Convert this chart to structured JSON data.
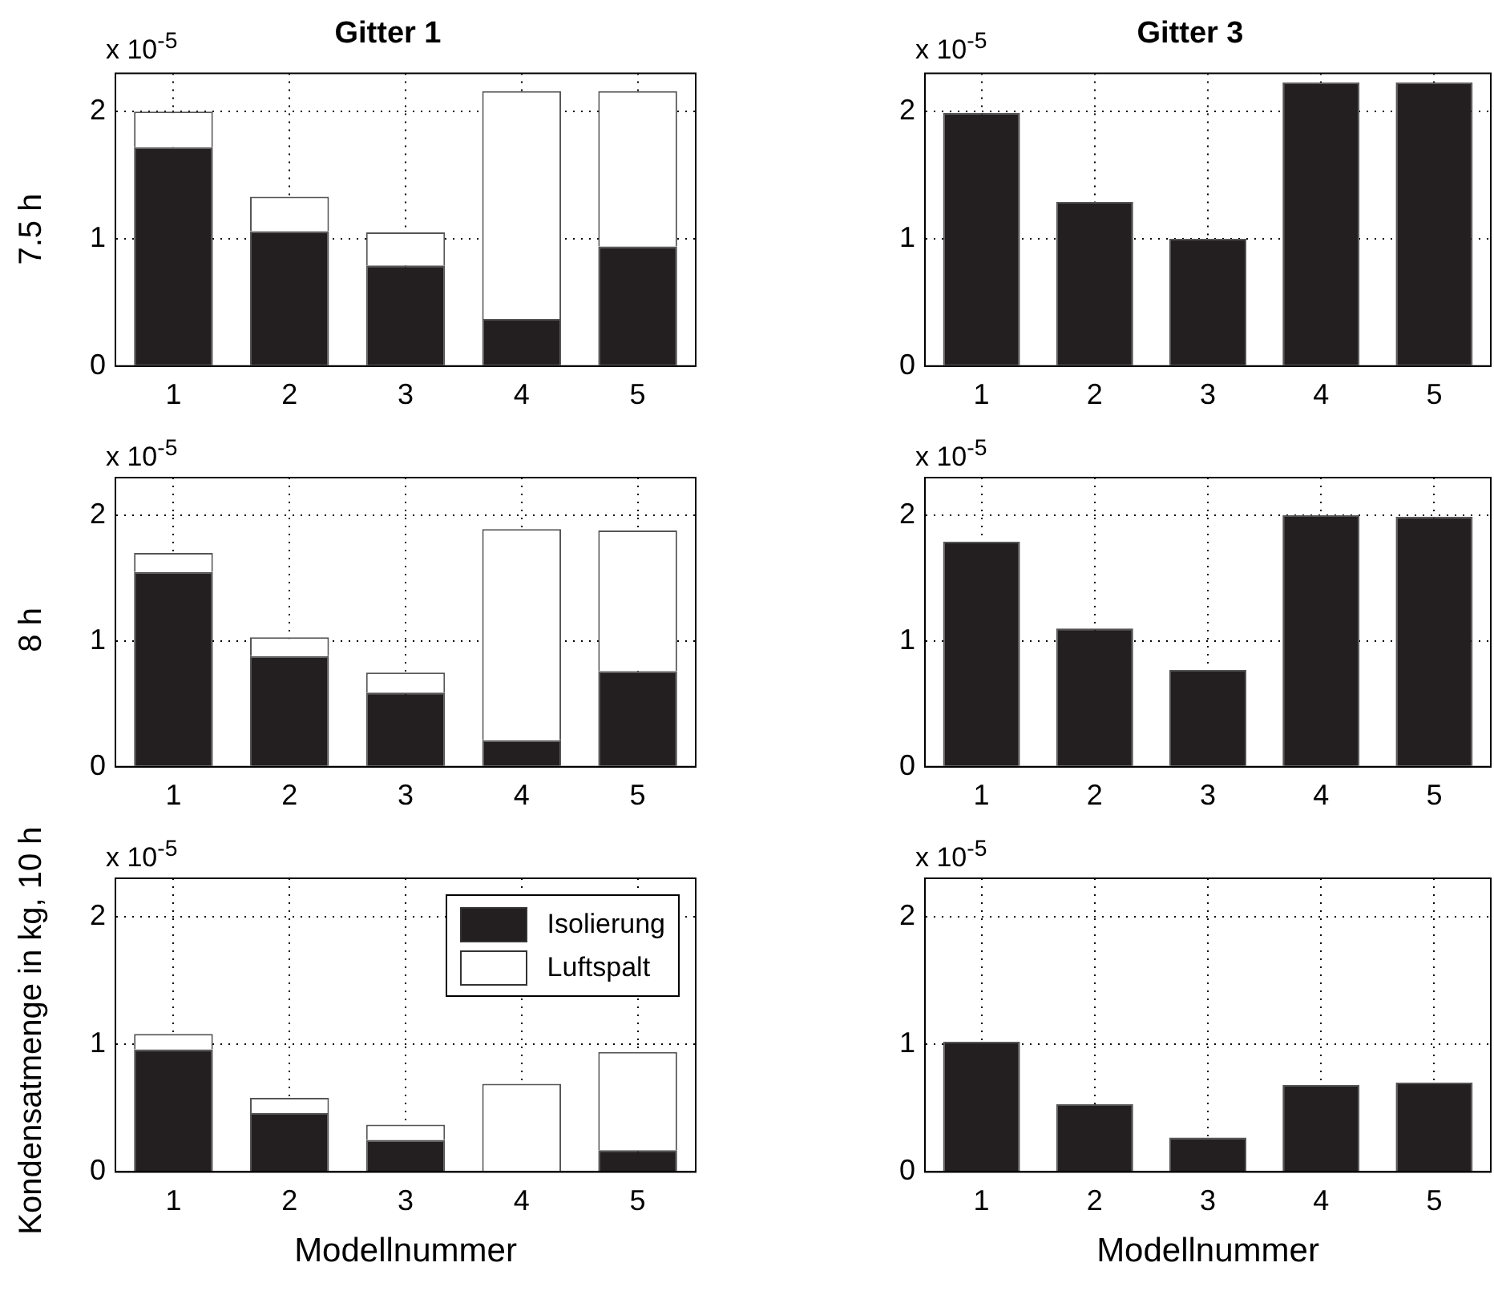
{
  "chart_data": [
    {
      "type": "bar",
      "title": "Gitter 1",
      "ylabel": "7.5 h",
      "categories": [
        "1",
        "2",
        "3",
        "4",
        "5"
      ],
      "stacked": true,
      "ylim": [
        0,
        2.3
      ],
      "yticks": [
        0,
        1,
        2
      ],
      "grid": true,
      "annotations": [
        "x 10$^{-5}$"
      ],
      "series": [
        {
          "color": "#231f20",
          "values": [
            1.72,
            1.06,
            0.79,
            0.37,
            0.94
          ]
        },
        {
          "color": "#ffffff",
          "values": [
            0.28,
            0.27,
            0.26,
            1.79,
            1.22
          ]
        }
      ]
    },
    {
      "type": "bar",
      "title": "Gitter 3",
      "categories": [
        "1",
        "2",
        "3",
        "4",
        "5"
      ],
      "ylim": [
        0,
        2.3
      ],
      "yticks": [
        0,
        1,
        2
      ],
      "grid": true,
      "annotations": [
        "x 10$^{-5}$"
      ],
      "series": [
        {
          "color": "#231f20",
          "values": [
            1.99,
            1.29,
            1.0,
            2.23,
            2.23
          ]
        }
      ]
    },
    {
      "type": "bar",
      "ylabel": "8 h",
      "categories": [
        "1",
        "2",
        "3",
        "4",
        "5"
      ],
      "stacked": true,
      "ylim": [
        0,
        2.3
      ],
      "yticks": [
        0,
        1,
        2
      ],
      "grid": true,
      "annotations": [
        "x 10$^{-5}$"
      ],
      "series": [
        {
          "color": "#231f20",
          "values": [
            1.55,
            0.88,
            0.59,
            0.21,
            0.76
          ]
        },
        {
          "color": "#ffffff",
          "values": [
            0.15,
            0.15,
            0.16,
            1.68,
            1.12
          ]
        }
      ]
    },
    {
      "type": "bar",
      "categories": [
        "1",
        "2",
        "3",
        "4",
        "5"
      ],
      "ylim": [
        0,
        2.3
      ],
      "yticks": [
        0,
        1,
        2
      ],
      "grid": true,
      "annotations": [
        "x 10$^{-5}$"
      ],
      "series": [
        {
          "color": "#231f20",
          "values": [
            1.79,
            1.1,
            0.77,
            2.0,
            1.99
          ]
        }
      ]
    },
    {
      "type": "bar",
      "ylabel": "Kondensatmenge in kg, 10 h",
      "xlabel": "Modellnummer",
      "categories": [
        "1",
        "2",
        "3",
        "4",
        "5"
      ],
      "stacked": true,
      "ylim": [
        0,
        2.3
      ],
      "yticks": [
        0,
        1,
        2
      ],
      "grid": true,
      "legend": "top right",
      "annotations": [
        "x 10$^{-5}$"
      ],
      "series": [
        {
          "name": "Isolierung",
          "color": "#231f20",
          "values": [
            0.96,
            0.46,
            0.25,
            0,
            0.17
          ]
        },
        {
          "name": "Luftspalt",
          "color": "#ffffff",
          "values": [
            0.12,
            0.12,
            0.12,
            0.69,
            0.77
          ]
        }
      ]
    },
    {
      "type": "bar",
      "xlabel": "Modellnummer",
      "categories": [
        "1",
        "2",
        "3",
        "4",
        "5"
      ],
      "ylim": [
        0,
        2.3
      ],
      "yticks": [
        0,
        1,
        2
      ],
      "grid": true,
      "annotations": [
        "x 10$^{-5}$"
      ],
      "series": [
        {
          "color": "#231f20",
          "values": [
            1.02,
            0.53,
            0.27,
            0.68,
            0.7
          ]
        }
      ]
    }
  ]
}
